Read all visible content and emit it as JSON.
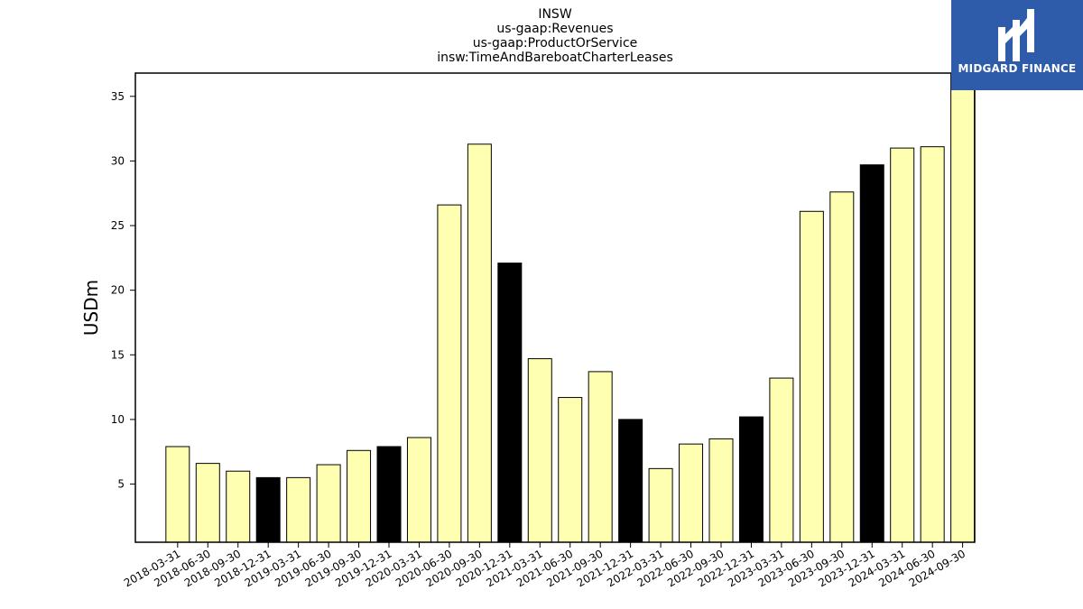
{
  "chart_data": {
    "type": "bar",
    "title_lines": [
      "INSW",
      "us-gaap:Revenues",
      "us-gaap:ProductOrService",
      "insw:TimeAndBareboatCharterLeases"
    ],
    "xlabel": "",
    "ylabel": "USDm",
    "ylim": [
      0.5,
      36.8
    ],
    "yticks": [
      5,
      10,
      15,
      20,
      25,
      30,
      35
    ],
    "categories": [
      "2018-03-31",
      "2018-06-30",
      "2018-09-30",
      "2018-12-31",
      "2019-03-31",
      "2019-06-30",
      "2019-09-30",
      "2019-12-31",
      "2020-03-31",
      "2020-06-30",
      "2020-09-30",
      "2020-12-31",
      "2021-03-31",
      "2021-06-30",
      "2021-09-30",
      "2021-12-31",
      "2022-03-31",
      "2022-06-30",
      "2022-09-30",
      "2022-12-31",
      "2023-03-31",
      "2023-06-30",
      "2023-09-30",
      "2023-12-31",
      "2024-03-31",
      "2024-06-30",
      "2024-09-30"
    ],
    "values": [
      7.9,
      6.6,
      6.0,
      5.5,
      5.5,
      6.5,
      7.6,
      7.9,
      8.6,
      26.6,
      31.3,
      22.1,
      14.7,
      11.7,
      13.7,
      10.0,
      6.2,
      8.1,
      8.5,
      10.2,
      13.2,
      26.1,
      27.6,
      29.7,
      31.0,
      31.1,
      36.8
    ],
    "colors": {
      "default": "#ffffb2",
      "year_end": "#000000",
      "edge": "#000000"
    },
    "year_end_categories": [
      "2018-12-31",
      "2019-12-31",
      "2020-12-31",
      "2021-12-31",
      "2022-12-31",
      "2023-12-31"
    ]
  },
  "logo": {
    "text": "MIDGARD FINANCE",
    "background": "#2f5caa"
  }
}
